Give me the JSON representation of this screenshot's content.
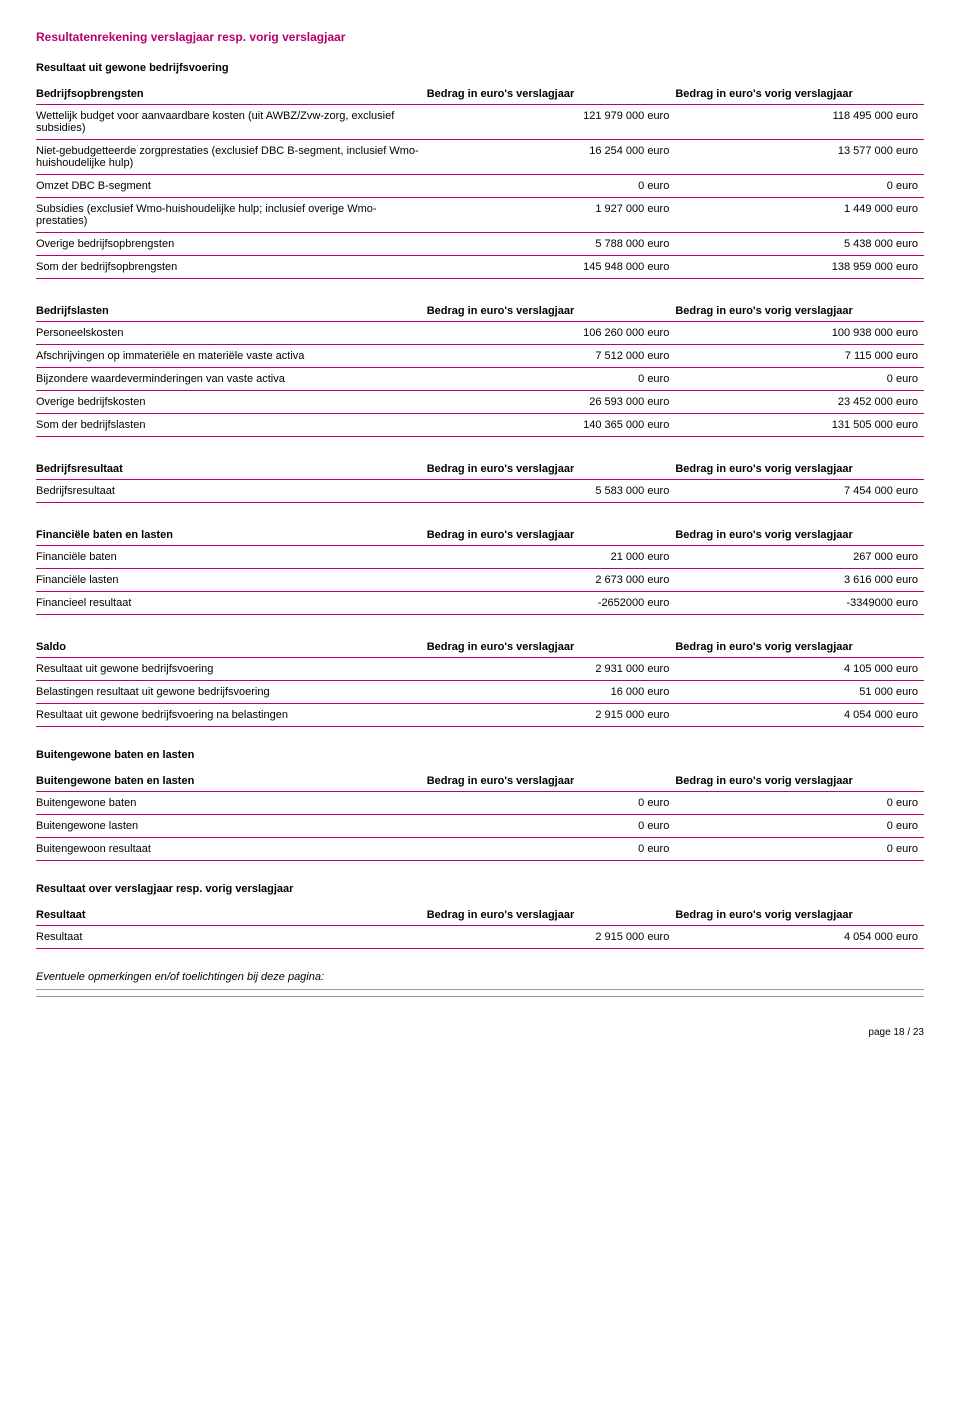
{
  "titles": {
    "main": "Resultatenrekening verslagjaar resp. vorig verslagjaar",
    "sub1": "Resultaat uit gewone bedrijfsvoering",
    "sub2": "Buitengewone baten en lasten",
    "sub3": "Resultaat over verslagjaar resp. vorig verslagjaar",
    "note": "Eventuele opmerkingen en/of toelichtingen bij deze pagina:",
    "pagefoot": "page 18 / 23"
  },
  "headers": {
    "col_cur": "Bedrag in euro's verslagjaar",
    "col_prev": "Bedrag in euro's vorig verslagjaar"
  },
  "tables": {
    "bedrijfsopbrengsten": {
      "header_label": "Bedrijfsopbrengsten",
      "rows": [
        {
          "label": "Wettelijk budget voor aanvaardbare kosten (uit AWBZ/Zvw-zorg, exclusief subsidies)",
          "cur": "121 979 000 euro",
          "prev": "118 495 000 euro"
        },
        {
          "label": "Niet-gebudgetteerde zorgprestaties (exclusief DBC B-segment, inclusief Wmo-huishoudelijke hulp)",
          "cur": "16 254 000 euro",
          "prev": "13 577 000 euro"
        },
        {
          "label": "Omzet DBC B-segment",
          "cur": "0 euro",
          "prev": "0 euro"
        },
        {
          "label": "Subsidies (exclusief Wmo-huishoudelijke hulp; inclusief overige Wmo-prestaties)",
          "cur": "1 927 000 euro",
          "prev": "1 449 000 euro"
        },
        {
          "label": "Overige bedrijfsopbrengsten",
          "cur": "5 788 000 euro",
          "prev": "5 438 000 euro"
        },
        {
          "label": "Som der bedrijfsopbrengsten",
          "cur": "145 948 000 euro",
          "prev": "138 959 000 euro"
        }
      ]
    },
    "bedrijfslasten": {
      "header_label": "Bedrijfslasten",
      "rows": [
        {
          "label": "Personeelskosten",
          "cur": "106 260 000 euro",
          "prev": "100 938 000 euro"
        },
        {
          "label": "Afschrijvingen op immateriële en materiële vaste activa",
          "cur": "7 512 000 euro",
          "prev": "7 115 000 euro"
        },
        {
          "label": "Bijzondere waardeverminderingen van vaste activa",
          "cur": "0 euro",
          "prev": "0 euro"
        },
        {
          "label": "Overige bedrijfskosten",
          "cur": "26 593 000 euro",
          "prev": "23 452 000 euro"
        },
        {
          "label": "Som der bedrijfslasten",
          "cur": "140 365 000 euro",
          "prev": "131 505 000 euro"
        }
      ]
    },
    "bedrijfsresultaat": {
      "header_label": "Bedrijfsresultaat",
      "rows": [
        {
          "label": "Bedrijfsresultaat",
          "cur": "5 583 000 euro",
          "prev": "7 454 000 euro"
        }
      ]
    },
    "financieel": {
      "header_label": "Financiële baten en lasten",
      "rows": [
        {
          "label": "Financiële baten",
          "cur": "21 000 euro",
          "prev": "267 000 euro"
        },
        {
          "label": "Financiële lasten",
          "cur": "2 673 000 euro",
          "prev": "3 616 000 euro"
        },
        {
          "label": "Financieel resultaat",
          "cur": "-2652000 euro",
          "prev": "-3349000 euro"
        }
      ]
    },
    "saldo": {
      "header_label": "Saldo",
      "rows": [
        {
          "label": "Resultaat uit gewone bedrijfsvoering",
          "cur": "2 931 000 euro",
          "prev": "4 105 000 euro"
        },
        {
          "label": "Belastingen resultaat uit gewone bedrijfsvoering",
          "cur": "16 000 euro",
          "prev": "51 000 euro"
        },
        {
          "label": "Resultaat uit gewone bedrijfsvoering na belastingen",
          "cur": "2 915 000 euro",
          "prev": "4 054 000 euro"
        }
      ]
    },
    "buitengewoon": {
      "header_label": "Buitengewone baten en lasten",
      "rows": [
        {
          "label": "Buitengewone baten",
          "cur": "0 euro",
          "prev": "0 euro"
        },
        {
          "label": "Buitengewone lasten",
          "cur": "0 euro",
          "prev": "0 euro"
        },
        {
          "label": "Buitengewoon resultaat",
          "cur": "0 euro",
          "prev": "0 euro"
        }
      ]
    },
    "resultaat": {
      "header_label": "Resultaat",
      "rows": [
        {
          "label": "Resultaat",
          "cur": "2 915 000 euro",
          "prev": "4 054 000 euro"
        }
      ]
    }
  }
}
